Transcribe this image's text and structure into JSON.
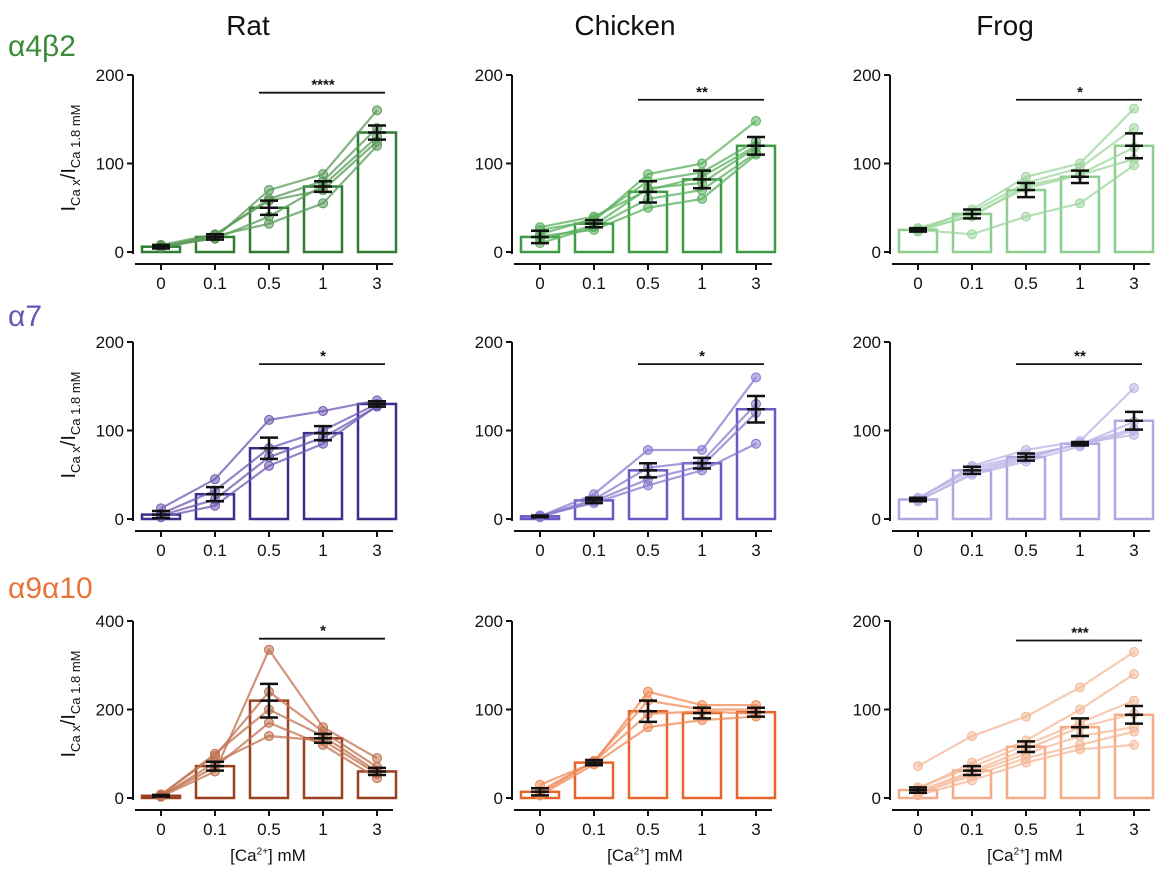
{
  "column_titles": [
    "Rat",
    "Chicken",
    "Frog"
  ],
  "row_titles": [
    "α4β2",
    "α7",
    "α9α10"
  ],
  "x_caption": {
    "pre": "[Ca",
    "sup": "2+",
    "post": "] mM"
  },
  "ylabel": {
    "main": "I",
    "sub1": "Ca x",
    "slash": "/I",
    "sub2": "Ca 1.8 mM"
  },
  "colors": {
    "row0": "#3a8a3a",
    "row1": "#6a55b0",
    "row2": "#e8743a",
    "errorbar": "#111111"
  },
  "chart_data": [
    {
      "type": "bar",
      "row": 0,
      "col": 0,
      "categories": [
        "0",
        "0.1",
        "0.5",
        "1",
        "3"
      ],
      "values": [
        6,
        17,
        50,
        74,
        135
      ],
      "errors": [
        2,
        3,
        8,
        6,
        8
      ],
      "ylim": [
        0,
        200
      ],
      "yticks": [
        "0",
        "100",
        "200"
      ],
      "bar_color": "#2f7d33",
      "line_color": "#5a9a5a",
      "lines": [
        [
          5,
          16,
          70,
          88,
          160
        ],
        [
          6,
          19,
          60,
          80,
          140
        ],
        [
          7,
          15,
          40,
          75,
          130
        ],
        [
          5,
          18,
          32,
          55,
          120
        ],
        [
          8,
          20,
          58,
          70,
          125
        ]
      ],
      "sig": {
        "from": 2,
        "to": 4,
        "label": "****",
        "y": 180
      }
    },
    {
      "type": "bar",
      "row": 0,
      "col": 1,
      "categories": [
        "0",
        "0.1",
        "0.5",
        "1",
        "3"
      ],
      "values": [
        17,
        32,
        68,
        82,
        120
      ],
      "errors": [
        7,
        4,
        12,
        10,
        10
      ],
      "ylim": [
        0,
        200
      ],
      "yticks": [
        "0",
        "100",
        "200"
      ],
      "bar_color": "#3f9a46",
      "line_color": "#5ab05e",
      "lines": [
        [
          25,
          35,
          88,
          100,
          148
        ],
        [
          20,
          38,
          80,
          90,
          125
        ],
        [
          14,
          30,
          72,
          78,
          118
        ],
        [
          10,
          28,
          60,
          70,
          112
        ],
        [
          28,
          40,
          70,
          85,
          120
        ],
        [
          18,
          25,
          50,
          60,
          110
        ]
      ],
      "sig": {
        "from": 2,
        "to": 4,
        "label": "**",
        "y": 172
      }
    },
    {
      "type": "bar",
      "row": 0,
      "col": 2,
      "categories": [
        "0",
        "0.1",
        "0.5",
        "1",
        "3"
      ],
      "values": [
        25,
        43,
        70,
        85,
        120
      ],
      "errors": [
        2,
        5,
        8,
        7,
        14
      ],
      "ylim": [
        0,
        200
      ],
      "yticks": [
        "0",
        "100",
        "200"
      ],
      "bar_color": "#8fce8f",
      "line_color": "#9ed69e",
      "lines": [
        [
          24,
          48,
          85,
          100,
          162
        ],
        [
          26,
          40,
          75,
          88,
          118
        ],
        [
          25,
          20,
          40,
          55,
          98
        ],
        [
          27,
          45,
          78,
          95,
          140
        ],
        [
          23,
          42,
          72,
          87,
          105
        ]
      ],
      "sig": {
        "from": 2,
        "to": 4,
        "label": "*",
        "y": 172
      }
    },
    {
      "type": "bar",
      "row": 1,
      "col": 0,
      "categories": [
        "0",
        "0.1",
        "0.5",
        "1",
        "3"
      ],
      "values": [
        5,
        28,
        80,
        97,
        130
      ],
      "errors": [
        4,
        8,
        12,
        8,
        3
      ],
      "ylim": [
        0,
        200
      ],
      "yticks": [
        "0",
        "100",
        "200"
      ],
      "bar_color": "#3d2e8c",
      "line_color": "#6f5ab3",
      "lines": [
        [
          12,
          45,
          112,
          122,
          134
        ],
        [
          6,
          32,
          80,
          100,
          130
        ],
        [
          2,
          15,
          60,
          85,
          128
        ],
        [
          4,
          22,
          70,
          92,
          127
        ]
      ],
      "sig": {
        "from": 2,
        "to": 4,
        "label": "*",
        "y": 175
      }
    },
    {
      "type": "bar",
      "row": 1,
      "col": 1,
      "categories": [
        "0",
        "0.1",
        "0.5",
        "1",
        "3"
      ],
      "values": [
        3,
        21,
        55,
        63,
        124
      ],
      "errors": [
        1,
        3,
        8,
        6,
        15
      ],
      "ylim": [
        0,
        200
      ],
      "yticks": [
        "0",
        "100",
        "200"
      ],
      "bar_color": "#6c58c2",
      "line_color": "#8a78cf",
      "lines": [
        [
          3,
          28,
          78,
          78,
          160
        ],
        [
          2,
          20,
          45,
          60,
          120
        ],
        [
          4,
          18,
          38,
          55,
          85
        ],
        [
          3,
          22,
          58,
          65,
          130
        ]
      ],
      "sig": {
        "from": 2,
        "to": 4,
        "label": "*",
        "y": 175
      }
    },
    {
      "type": "bar",
      "row": 1,
      "col": 2,
      "categories": [
        "0",
        "0.1",
        "0.5",
        "1",
        "3"
      ],
      "values": [
        22,
        55,
        70,
        85,
        111
      ],
      "errors": [
        2,
        4,
        4,
        2,
        10
      ],
      "ylim": [
        0,
        200
      ],
      "yticks": [
        "0",
        "100",
        "200"
      ],
      "bar_color": "#b3a5e0",
      "line_color": "#beb2e6",
      "lines": [
        [
          22,
          60,
          78,
          88,
          148
        ],
        [
          21,
          50,
          65,
          82,
          100
        ],
        [
          23,
          58,
          72,
          84,
          110
        ],
        [
          20,
          52,
          68,
          86,
          95
        ],
        [
          24,
          55,
          70,
          85,
          102
        ]
      ],
      "sig": {
        "from": 2,
        "to": 4,
        "label": "**",
        "y": 175
      }
    },
    {
      "type": "bar",
      "row": 2,
      "col": 0,
      "categories": [
        "0",
        "0.1",
        "0.5",
        "1",
        "3"
      ],
      "values": [
        5,
        72,
        220,
        135,
        60
      ],
      "errors": [
        2,
        10,
        38,
        10,
        8
      ],
      "ylim": [
        0,
        400
      ],
      "yticks": [
        "0",
        "200",
        "400"
      ],
      "bar_color": "#9a3f1f",
      "line_color": "#c0714f",
      "lines": [
        [
          3,
          60,
          335,
          160,
          90
        ],
        [
          8,
          95,
          240,
          150,
          70
        ],
        [
          5,
          70,
          170,
          120,
          45
        ],
        [
          4,
          80,
          140,
          130,
          55
        ],
        [
          6,
          100,
          200,
          140,
          60
        ]
      ],
      "sig": {
        "from": 2,
        "to": 4,
        "label": "*",
        "y": 360
      }
    },
    {
      "type": "bar",
      "row": 2,
      "col": 1,
      "categories": [
        "0",
        "0.1",
        "0.5",
        "1",
        "3"
      ],
      "values": [
        7,
        40,
        98,
        96,
        97
      ],
      "errors": [
        4,
        3,
        12,
        6,
        5
      ],
      "ylim": [
        0,
        200
      ],
      "yticks": [
        "0",
        "100",
        "200"
      ],
      "bar_color": "#e8652a",
      "line_color": "#f08a55",
      "lines": [
        [
          15,
          40,
          120,
          105,
          105
        ],
        [
          5,
          42,
          110,
          100,
          100
        ],
        [
          3,
          38,
          80,
          88,
          92
        ],
        [
          8,
          41,
          95,
          98,
          95
        ]
      ],
      "sig": null
    },
    {
      "type": "bar",
      "row": 2,
      "col": 2,
      "categories": [
        "0",
        "0.1",
        "0.5",
        "1",
        "3"
      ],
      "values": [
        9,
        31,
        58,
        80,
        94
      ],
      "errors": [
        3,
        5,
        6,
        10,
        10
      ],
      "ylim": [
        0,
        200
      ],
      "yticks": [
        "0",
        "100",
        "200"
      ],
      "bar_color": "#f4ad8a",
      "line_color": "#f4b898",
      "lines": [
        [
          36,
          70,
          92,
          125,
          165
        ],
        [
          10,
          40,
          65,
          100,
          140
        ],
        [
          5,
          25,
          45,
          60,
          75
        ],
        [
          8,
          30,
          55,
          80,
          95
        ],
        [
          3,
          20,
          40,
          55,
          60
        ],
        [
          12,
          35,
          60,
          85,
          110
        ],
        [
          6,
          28,
          50,
          70,
          80
        ]
      ],
      "sig": {
        "from": 2,
        "to": 4,
        "label": "***",
        "y": 178
      }
    }
  ]
}
